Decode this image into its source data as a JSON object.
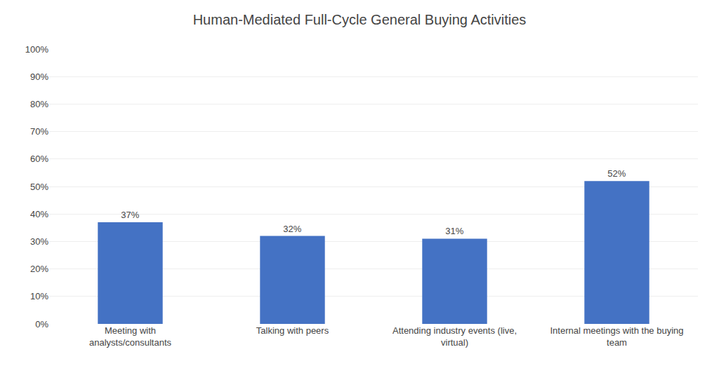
{
  "chart_data": {
    "type": "bar",
    "title": "Human-Mediated Full-Cycle General Buying Activities",
    "categories": [
      "Meeting with\nanalysts/consultants",
      "Talking with peers",
      "Attending industry events (live,\nvirtual)",
      "Internal meetings with the buying\nteam"
    ],
    "values": [
      37,
      32,
      31,
      52
    ],
    "value_labels": [
      "37%",
      "32%",
      "31%",
      "52%"
    ],
    "data_labels": true,
    "color": "#4472C4",
    "ylim": [
      0,
      100
    ],
    "yticks": [
      {
        "value": 0,
        "label": "0%"
      },
      {
        "value": 10,
        "label": "10%"
      },
      {
        "value": 20,
        "label": "20%"
      },
      {
        "value": 30,
        "label": "30%"
      },
      {
        "value": 40,
        "label": "40%"
      },
      {
        "value": 50,
        "label": "50%"
      },
      {
        "value": 60,
        "label": "60%"
      },
      {
        "value": 70,
        "label": "70%"
      },
      {
        "value": 80,
        "label": "80%"
      },
      {
        "value": 90,
        "label": "90%"
      },
      {
        "value": 100,
        "label": "100%"
      }
    ],
    "grid": true
  }
}
